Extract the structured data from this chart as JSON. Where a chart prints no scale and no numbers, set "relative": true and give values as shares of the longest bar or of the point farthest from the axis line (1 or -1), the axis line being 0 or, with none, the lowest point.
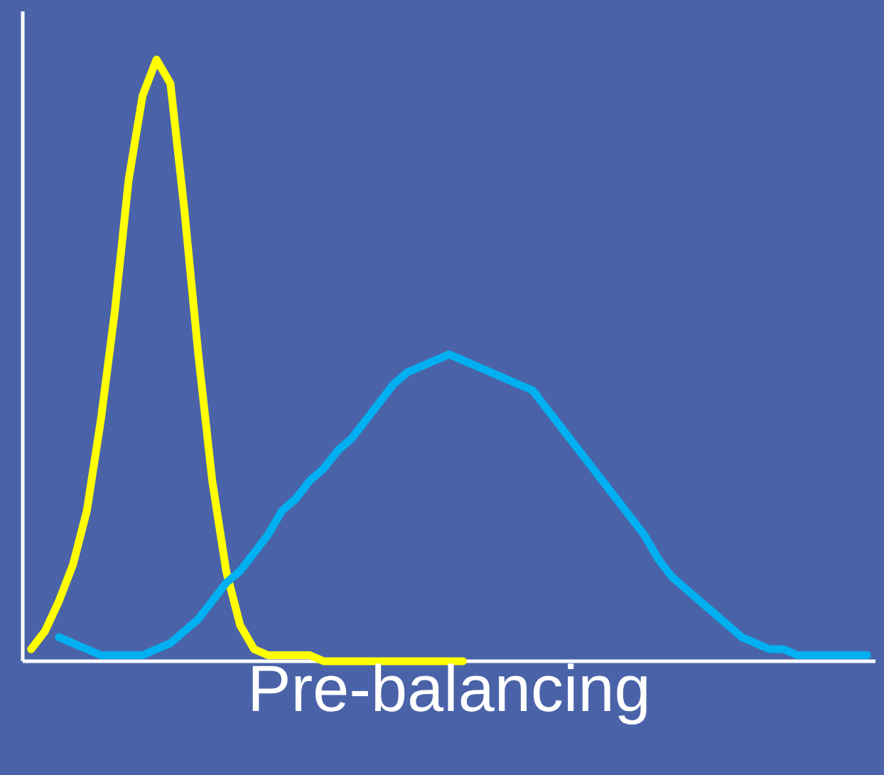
{
  "chart_data": {
    "type": "line",
    "relative": true,
    "xlabel": "Pre-balancing",
    "categories": [
      null,
      null,
      null,
      null,
      null,
      null,
      null,
      null,
      null,
      null,
      null,
      null,
      null,
      null,
      null,
      null,
      null,
      null,
      null,
      null,
      null,
      null,
      null,
      null,
      null,
      null,
      null,
      null,
      null,
      null,
      null,
      null,
      null,
      null,
      null,
      null,
      null,
      null,
      null,
      null,
      null,
      null,
      null,
      null,
      null,
      null,
      null,
      null,
      null,
      null,
      null,
      null,
      null,
      null,
      null,
      null,
      null,
      null,
      null,
      null,
      null
    ],
    "series": [
      {
        "color": "#ffff00",
        "values": [
          0.02,
          0.05,
          0.1,
          0.16,
          0.25,
          0.4,
          0.58,
          0.8,
          0.94,
          1.0,
          0.96,
          0.75,
          0.51,
          0.3,
          0.15,
          0.06,
          0.02,
          0.01,
          0.01,
          0.01,
          0.01,
          0,
          0,
          0,
          0,
          0,
          0,
          0,
          0,
          0,
          0,
          0,
          null,
          null,
          null,
          null,
          null,
          null,
          null,
          null,
          null,
          null,
          null,
          null,
          null,
          null,
          null,
          null,
          null,
          null,
          null,
          null,
          null,
          null,
          null,
          null,
          null,
          null,
          null,
          null,
          null
        ]
      },
      {
        "color": "#00b0f0",
        "values": [
          null,
          null,
          0.04,
          0.03,
          0.02,
          0.01,
          0.01,
          0.01,
          0.01,
          0.02,
          0.03,
          0.05,
          0.07,
          0.1,
          0.13,
          0.15,
          0.18,
          0.21,
          0.25,
          0.27,
          0.3,
          0.32,
          0.35,
          0.37,
          0.4,
          0.43,
          0.46,
          0.48,
          0.49,
          0.5,
          0.51,
          0.5,
          0.49,
          0.48,
          0.47,
          0.46,
          0.45,
          0.42,
          0.39,
          0.36,
          0.33,
          0.3,
          0.27,
          0.24,
          0.21,
          0.17,
          0.14,
          0.12,
          0.1,
          0.08,
          0.06,
          0.04,
          0.03,
          0.02,
          0.02,
          0.01,
          0.01,
          0.01,
          0.01,
          0.01,
          0.01
        ]
      }
    ]
  }
}
